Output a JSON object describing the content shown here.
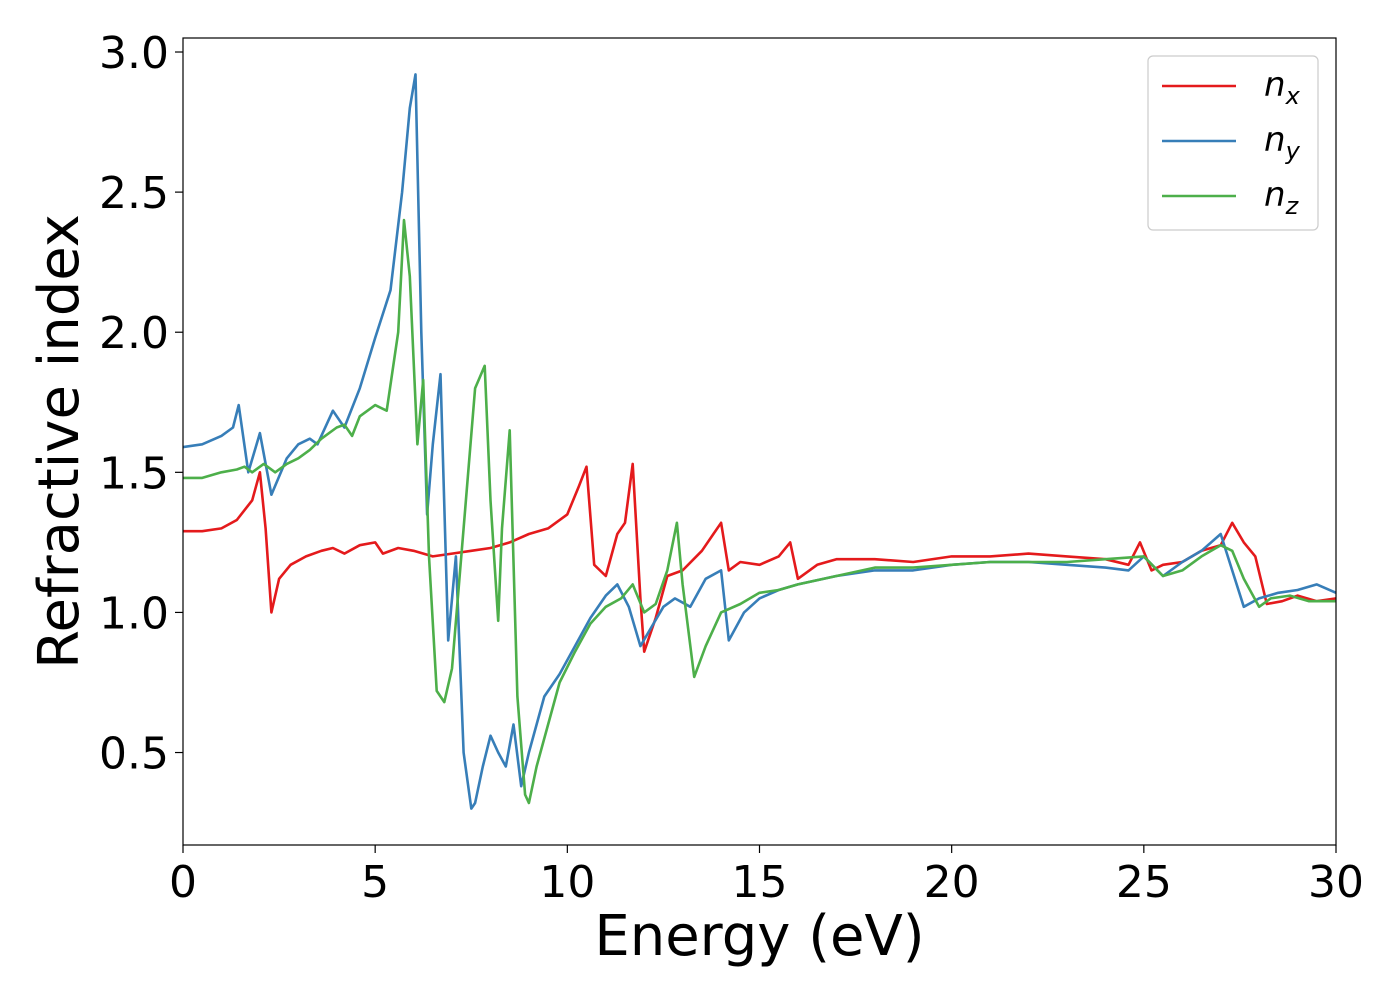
{
  "chart_data": {
    "type": "line",
    "title": "",
    "xlabel": "Energy (eV)",
    "ylabel": "Refractive index",
    "xlim": [
      0,
      30
    ],
    "ylim": [
      0.17,
      3.05
    ],
    "xticks": [
      0,
      5,
      10,
      15,
      20,
      25,
      30
    ],
    "yticks": [
      0.5,
      1.0,
      1.5,
      2.0,
      2.5,
      3.0
    ],
    "xtick_labels": [
      "0",
      "5",
      "10",
      "15",
      "20",
      "25",
      "30"
    ],
    "ytick_labels": [
      "0.5",
      "1.0",
      "1.5",
      "2.0",
      "2.5",
      "3.0"
    ],
    "grid": false,
    "legend_position": "top-right",
    "series": [
      {
        "name": "n_x",
        "legend_base": "n",
        "legend_sub": "x",
        "color": "#e41a1c",
        "x": [
          0,
          0.5,
          1.0,
          1.4,
          1.8,
          2.0,
          2.15,
          2.3,
          2.5,
          2.8,
          3.2,
          3.6,
          3.9,
          4.2,
          4.6,
          5.0,
          5.2,
          5.6,
          6.0,
          6.5,
          7.0,
          7.5,
          8.0,
          8.5,
          9.0,
          9.5,
          10.0,
          10.3,
          10.5,
          10.7,
          11.0,
          11.3,
          11.5,
          11.7,
          11.9,
          12.0,
          12.3,
          12.6,
          13.0,
          13.5,
          13.8,
          14.0,
          14.2,
          14.5,
          15.0,
          15.5,
          15.8,
          16.0,
          16.5,
          17.0,
          18.0,
          19.0,
          20.0,
          21.0,
          22.0,
          23.0,
          24.0,
          24.6,
          24.9,
          25.2,
          25.5,
          26.0,
          26.5,
          27.0,
          27.3,
          27.6,
          27.9,
          28.2,
          28.6,
          29.0,
          29.5,
          30.0
        ],
        "y": [
          1.29,
          1.29,
          1.3,
          1.33,
          1.4,
          1.5,
          1.3,
          1.0,
          1.12,
          1.17,
          1.2,
          1.22,
          1.23,
          1.21,
          1.24,
          1.25,
          1.21,
          1.23,
          1.22,
          1.2,
          1.21,
          1.22,
          1.23,
          1.25,
          1.28,
          1.3,
          1.35,
          1.45,
          1.52,
          1.17,
          1.13,
          1.28,
          1.32,
          1.53,
          1.05,
          0.86,
          0.98,
          1.13,
          1.15,
          1.22,
          1.28,
          1.32,
          1.15,
          1.18,
          1.17,
          1.2,
          1.25,
          1.12,
          1.17,
          1.19,
          1.19,
          1.18,
          1.2,
          1.2,
          1.21,
          1.2,
          1.19,
          1.17,
          1.25,
          1.15,
          1.17,
          1.18,
          1.22,
          1.24,
          1.32,
          1.25,
          1.2,
          1.03,
          1.04,
          1.06,
          1.04,
          1.05
        ]
      },
      {
        "name": "n_y",
        "legend_base": "n",
        "legend_sub": "y",
        "color": "#377eb8",
        "x": [
          0,
          0.5,
          1.0,
          1.3,
          1.45,
          1.7,
          2.0,
          2.3,
          2.7,
          3.0,
          3.3,
          3.5,
          3.9,
          4.2,
          4.6,
          5.0,
          5.4,
          5.7,
          5.9,
          6.05,
          6.2,
          6.35,
          6.5,
          6.7,
          6.9,
          7.1,
          7.3,
          7.5,
          7.6,
          7.8,
          8.0,
          8.2,
          8.4,
          8.6,
          8.8,
          9.0,
          9.4,
          9.8,
          10.2,
          10.6,
          11.0,
          11.3,
          11.6,
          11.9,
          12.2,
          12.5,
          12.8,
          13.2,
          13.6,
          14.0,
          14.2,
          14.6,
          15.0,
          15.5,
          16.0,
          17.0,
          18.0,
          19.0,
          20.0,
          21.0,
          22.0,
          23.0,
          24.0,
          24.6,
          25.0,
          25.5,
          26.0,
          26.5,
          27.0,
          27.3,
          27.6,
          28.0,
          28.5,
          29.0,
          29.5,
          30.0
        ],
        "y": [
          1.59,
          1.6,
          1.63,
          1.66,
          1.74,
          1.5,
          1.64,
          1.42,
          1.55,
          1.6,
          1.62,
          1.6,
          1.72,
          1.66,
          1.8,
          1.98,
          2.15,
          2.5,
          2.8,
          2.92,
          2.0,
          1.35,
          1.6,
          1.85,
          0.9,
          1.2,
          0.5,
          0.3,
          0.32,
          0.45,
          0.56,
          0.5,
          0.45,
          0.6,
          0.38,
          0.5,
          0.7,
          0.78,
          0.88,
          0.98,
          1.06,
          1.1,
          1.02,
          0.88,
          0.95,
          1.02,
          1.05,
          1.02,
          1.12,
          1.15,
          0.9,
          1.0,
          1.05,
          1.08,
          1.1,
          1.13,
          1.15,
          1.15,
          1.17,
          1.18,
          1.18,
          1.17,
          1.16,
          1.15,
          1.2,
          1.13,
          1.18,
          1.22,
          1.28,
          1.15,
          1.02,
          1.05,
          1.07,
          1.08,
          1.1,
          1.07
        ]
      },
      {
        "name": "n_z",
        "legend_base": "n",
        "legend_sub": "z",
        "color": "#4daf4a",
        "x": [
          0,
          0.5,
          1.0,
          1.4,
          1.6,
          1.8,
          2.1,
          2.4,
          2.7,
          3.0,
          3.3,
          3.6,
          4.0,
          4.2,
          4.4,
          4.6,
          5.0,
          5.3,
          5.6,
          5.75,
          5.9,
          6.1,
          6.25,
          6.4,
          6.6,
          6.8,
          7.0,
          7.3,
          7.6,
          7.85,
          8.0,
          8.2,
          8.3,
          8.5,
          8.7,
          8.9,
          9.0,
          9.2,
          9.5,
          9.8,
          10.2,
          10.6,
          11.0,
          11.4,
          11.7,
          12.0,
          12.3,
          12.6,
          12.85,
          13.0,
          13.3,
          13.6,
          14.0,
          14.5,
          15.0,
          15.5,
          16.0,
          17.0,
          18.0,
          19.0,
          20.0,
          21.0,
          22.0,
          23.0,
          24.0,
          25.0,
          25.5,
          26.0,
          26.5,
          27.0,
          27.3,
          27.6,
          28.0,
          28.3,
          28.8,
          29.3,
          30.0
        ],
        "y": [
          1.48,
          1.48,
          1.5,
          1.51,
          1.52,
          1.5,
          1.53,
          1.5,
          1.53,
          1.55,
          1.58,
          1.62,
          1.66,
          1.67,
          1.63,
          1.7,
          1.74,
          1.72,
          2.0,
          2.4,
          2.2,
          1.6,
          1.83,
          1.2,
          0.72,
          0.68,
          0.8,
          1.3,
          1.8,
          1.88,
          1.4,
          0.97,
          1.3,
          1.65,
          0.7,
          0.35,
          0.32,
          0.45,
          0.6,
          0.75,
          0.86,
          0.96,
          1.02,
          1.05,
          1.1,
          1.0,
          1.03,
          1.15,
          1.32,
          1.1,
          0.77,
          0.88,
          1.0,
          1.03,
          1.07,
          1.08,
          1.1,
          1.13,
          1.16,
          1.16,
          1.17,
          1.18,
          1.18,
          1.18,
          1.19,
          1.2,
          1.13,
          1.15,
          1.2,
          1.24,
          1.22,
          1.12,
          1.02,
          1.05,
          1.06,
          1.04,
          1.04
        ]
      }
    ]
  }
}
